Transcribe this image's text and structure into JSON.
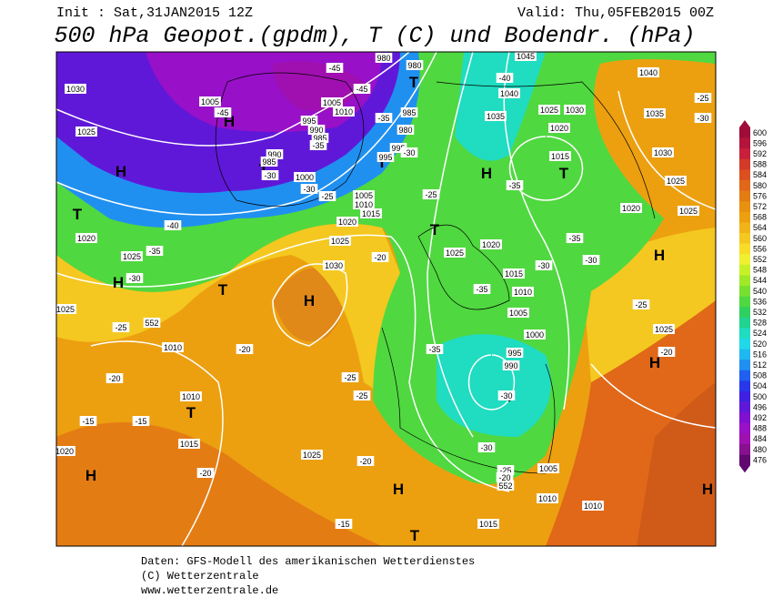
{
  "header": {
    "init": "Init : Sat,31JAN2015 12Z",
    "valid": "Valid: Thu,05FEB2015 00Z",
    "title": "500 hPa Geopot.(gpdm), T (C) und Bodendr. (hPa)"
  },
  "footer": {
    "line1": "Daten: GFS-Modell des amerikanischen Wetterdienstes",
    "line2": "(C) Wetterzentrale",
    "line3": "www.wetterzentrale.de"
  },
  "colorbar": {
    "values": [
      600,
      596,
      592,
      588,
      584,
      580,
      576,
      572,
      568,
      564,
      560,
      556,
      552,
      548,
      544,
      540,
      536,
      532,
      528,
      524,
      520,
      516,
      512,
      508,
      504,
      500,
      496,
      492,
      488,
      484,
      480,
      476
    ],
    "colors": [
      "#a00c3a",
      "#b4143c",
      "#c8203c",
      "#d23a2a",
      "#dc5020",
      "#e06818",
      "#e47c14",
      "#e89010",
      "#eca010",
      "#f0b418",
      "#f4c820",
      "#f8dc28",
      "#f0f030",
      "#c8f028",
      "#a0e828",
      "#78e030",
      "#50d840",
      "#30d060",
      "#20d490",
      "#20dcc0",
      "#20d8e8",
      "#20b8f0",
      "#2090f0",
      "#2060f0",
      "#2838e8",
      "#4020e0",
      "#6018d8",
      "#8010d0",
      "#9810c8",
      "#a010b0",
      "#881090",
      "#600870"
    ]
  },
  "map_labels": [
    "H",
    "H",
    "H",
    "H",
    "H",
    "H",
    "H",
    "H",
    "H",
    "H",
    "T",
    "T",
    "T",
    "T",
    "T",
    "T",
    "T",
    "T",
    "T",
    "T",
    "1030",
    "1025",
    "1020",
    "1005",
    "1005",
    "1010",
    "995",
    "990",
    "985",
    "990",
    "985",
    "1000",
    "1005",
    "1010",
    "1015",
    "1020",
    "1025",
    "1030",
    "1010",
    "1010",
    "1015",
    "1025",
    "1025",
    "1020",
    "1015",
    "1010",
    "1005",
    "1000",
    "995",
    "990",
    "1005",
    "1010",
    "1010",
    "1015",
    "1035",
    "1040",
    "1045",
    "1025",
    "1030",
    "1020",
    "1015",
    "1020",
    "1025",
    "1030",
    "1035",
    "1040",
    "1025",
    "1025",
    "1025",
    "980",
    "980",
    "985",
    "980",
    "995",
    "995",
    "1020",
    "1025",
    "1020",
    "-45",
    "-45",
    "-45",
    "-40",
    "-35",
    "-30",
    "-30",
    "-25",
    "-40",
    "-35",
    "-30",
    "-25",
    "-20",
    "-15",
    "-15",
    "-20",
    "-20",
    "-20",
    "-25",
    "-25",
    "-25",
    "-35",
    "-35",
    "-30",
    "-35",
    "-35",
    "-30",
    "-25",
    "-20",
    "-30",
    "-30",
    "-25",
    "-20",
    "-25",
    "-30",
    "-20",
    "-15",
    "-35",
    "-30",
    "552",
    "552"
  ]
}
